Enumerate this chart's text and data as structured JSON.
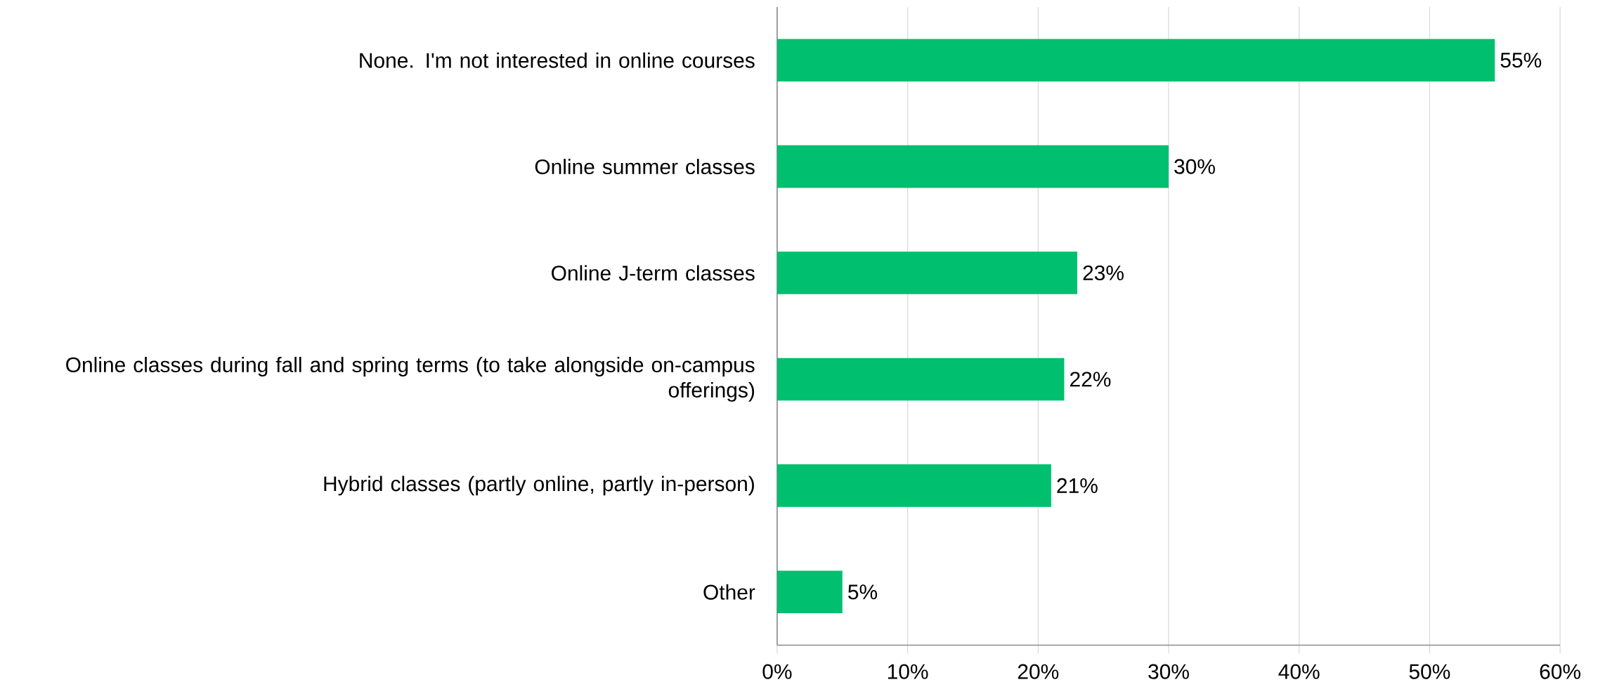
{
  "chart_data": {
    "type": "bar",
    "orientation": "horizontal",
    "categories": [
      "None. I'm not interested in online courses",
      "Online summer classes",
      "Online J-term classes",
      "Online classes during fall and spring terms (to take alongside on-campus offerings)",
      "Hybrid classes (partly online, partly in-person)",
      "Other"
    ],
    "values": [
      55,
      30,
      23,
      22,
      21,
      5
    ],
    "value_labels": [
      "55%",
      "30%",
      "23%",
      "22%",
      "21%",
      "5%"
    ],
    "color": "#00bf6f",
    "xlim": [
      0,
      60
    ],
    "xticks": [
      {
        "value": 0,
        "label": "0%"
      },
      {
        "value": 10,
        "label": "10%"
      },
      {
        "value": 20,
        "label": "20%"
      },
      {
        "value": 30,
        "label": "30%"
      },
      {
        "value": 40,
        "label": "40%"
      },
      {
        "value": 50,
        "label": "50%"
      },
      {
        "value": 60,
        "label": "60%"
      }
    ],
    "grid": "x"
  }
}
